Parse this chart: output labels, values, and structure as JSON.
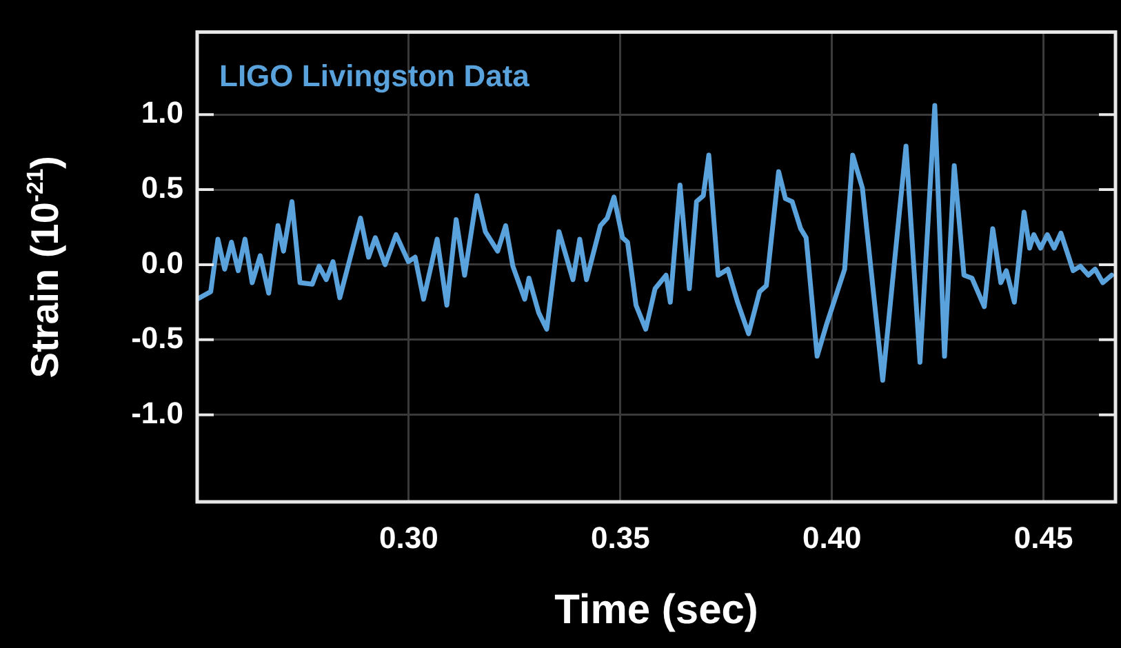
{
  "chart_data": {
    "type": "line",
    "xlabel": "Time (sec)",
    "ylabel": "Strain (10$^{-21}$)",
    "legend": "top left",
    "grid": true,
    "marker": "none",
    "line_style": "solid",
    "xlim": [
      0.25,
      0.467
    ],
    "ylim": [
      -1.58,
      1.55
    ],
    "xticks": [
      {
        "value": 0.3,
        "label": "0.30"
      },
      {
        "value": 0.35,
        "label": "0.35"
      },
      {
        "value": 0.4,
        "label": "0.40"
      },
      {
        "value": 0.45,
        "label": "0.45"
      }
    ],
    "yticks": [
      {
        "value": -1,
        "label": "-1.0"
      },
      {
        "value": -0.5,
        "label": "-0.5"
      },
      {
        "value": 0,
        "label": "0.0"
      },
      {
        "value": 0.5,
        "label": "0.5"
      },
      {
        "value": 1,
        "label": "1.0"
      }
    ],
    "series": [
      {
        "name": "LIGO Livingston Data",
        "color": "#5aa2dc",
        "x": [
          0.25,
          0.2532,
          0.2549,
          0.2565,
          0.2581,
          0.2597,
          0.2613,
          0.263,
          0.2649,
          0.2669,
          0.2691,
          0.2704,
          0.2724,
          0.2743,
          0.2772,
          0.2788,
          0.2805,
          0.2821,
          0.2837,
          0.2886,
          0.2905,
          0.2921,
          0.2944,
          0.297,
          0.2999,
          0.3015,
          0.3035,
          0.3067,
          0.309,
          0.3112,
          0.3132,
          0.3161,
          0.3181,
          0.321,
          0.3229,
          0.3246,
          0.3274,
          0.3284,
          0.3307,
          0.3326,
          0.3355,
          0.3388,
          0.3404,
          0.342,
          0.3453,
          0.3469,
          0.3485,
          0.3505,
          0.3517,
          0.3537,
          0.356,
          0.3582,
          0.3608,
          0.3618,
          0.3641,
          0.3663,
          0.368,
          0.3696,
          0.3709,
          0.3731,
          0.3754,
          0.3777,
          0.3803,
          0.3829,
          0.3845,
          0.3874,
          0.389,
          0.3906,
          0.3926,
          0.3939,
          0.3965,
          0.3987,
          0.403,
          0.4049,
          0.4072,
          0.412,
          0.4175,
          0.4208,
          0.4243,
          0.4266,
          0.4289,
          0.4312,
          0.4331,
          0.436,
          0.438,
          0.4399,
          0.4412,
          0.4431,
          0.4454,
          0.4467,
          0.4477,
          0.4493,
          0.4509,
          0.4525,
          0.4541,
          0.457,
          0.4587,
          0.4606,
          0.4622,
          0.464,
          0.4661
        ],
        "values": [
          -0.23,
          -0.18,
          0.17,
          -0.03,
          0.15,
          -0.04,
          0.17,
          -0.12,
          0.06,
          -0.19,
          0.26,
          0.09,
          0.42,
          -0.12,
          -0.13,
          -0.01,
          -0.1,
          0.02,
          -0.22,
          0.31,
          0.05,
          0.18,
          0.0,
          0.2,
          0.02,
          0.05,
          -0.23,
          0.17,
          -0.27,
          0.3,
          -0.07,
          0.46,
          0.22,
          0.09,
          0.26,
          -0.01,
          -0.23,
          -0.09,
          -0.32,
          -0.43,
          0.22,
          -0.1,
          0.17,
          -0.1,
          0.26,
          0.31,
          0.45,
          0.18,
          0.15,
          -0.27,
          -0.43,
          -0.16,
          -0.07,
          -0.25,
          0.53,
          -0.16,
          0.42,
          0.46,
          0.73,
          -0.07,
          -0.03,
          -0.25,
          -0.46,
          -0.18,
          -0.14,
          0.62,
          0.44,
          0.42,
          0.24,
          0.18,
          -0.61,
          -0.4,
          -0.03,
          0.73,
          0.51,
          -0.77,
          0.79,
          -0.65,
          1.06,
          -0.61,
          0.66,
          -0.07,
          -0.09,
          -0.28,
          0.24,
          -0.12,
          -0.04,
          -0.25,
          0.35,
          0.11,
          0.2,
          0.11,
          0.2,
          0.11,
          0.21,
          -0.04,
          -0.01,
          -0.07,
          -0.03,
          -0.12,
          -0.07
        ]
      }
    ]
  }
}
